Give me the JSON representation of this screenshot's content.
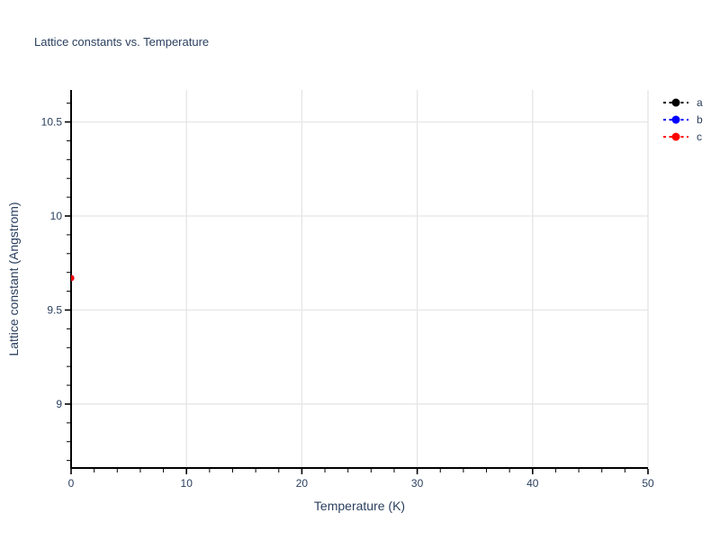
{
  "title": "Lattice constants vs. Temperature",
  "chart_data": {
    "type": "scatter",
    "title": "Lattice constants vs. Temperature",
    "xlabel": "Temperature (K)",
    "ylabel": "Lattice constant (Angstrom)",
    "xlim": [
      0,
      50
    ],
    "ylim": [
      8.66,
      10.67
    ],
    "x_major_ticks": [
      0,
      10,
      20,
      30,
      40,
      50
    ],
    "x_minor_step": 2,
    "y_major_ticks": [
      9,
      9.5,
      10,
      10.5
    ],
    "y_minor_step": 0.1,
    "grid": true,
    "gridcolor": "#e5e5e5",
    "axis_color": "#000000",
    "label_color": "#2a3f5f",
    "legend_position": "top-right",
    "series": [
      {
        "name": "a",
        "color": "#000000",
        "marker": "circle",
        "line_style": "dotted",
        "points": [
          [
            0,
            9.67
          ]
        ]
      },
      {
        "name": "b",
        "color": "#0000ff",
        "marker": "circle",
        "line_style": "dotted",
        "points": [
          [
            0,
            9.67
          ]
        ]
      },
      {
        "name": "c",
        "color": "#ff0000",
        "marker": "circle",
        "line_style": "dotted",
        "points": [
          [
            0,
            9.67
          ]
        ]
      }
    ]
  }
}
